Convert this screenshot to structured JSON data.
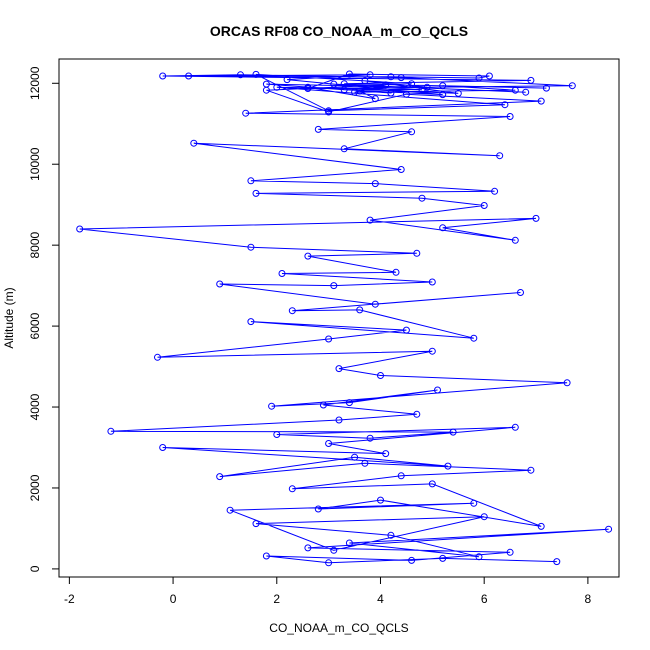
{
  "chart_data": {
    "type": "scatter",
    "title": "ORCAS RF08 CO_NOAA_m_CO_QCLS",
    "xlabel": "CO_NOAA_m_CO_QCLS",
    "ylabel": "Altitude (m)",
    "xlim": [
      -2.2,
      8.6
    ],
    "ylim": [
      -200,
      12600
    ],
    "xticks": [
      -2,
      0,
      2,
      4,
      6,
      8
    ],
    "yticks": [
      0,
      2000,
      4000,
      6000,
      8000,
      10000,
      12000
    ],
    "x": [
      7.4,
      5.2,
      3.0,
      1.8,
      4.6,
      6.5,
      2.6,
      8.4,
      3.4,
      5.9,
      4.2,
      1.6,
      6.0,
      3.1,
      1.1,
      5.8,
      2.8,
      4.0,
      7.1,
      5.0,
      2.3,
      4.4,
      6.9,
      3.7,
      0.9,
      3.5,
      5.3,
      -0.2,
      4.1,
      3.0,
      6.6,
      2.0,
      3.8,
      5.4,
      -1.2,
      3.2,
      4.7,
      2.9,
      5.1,
      3.4,
      1.9,
      7.6,
      4.0,
      3.2,
      5.0,
      -0.3,
      3.0,
      4.5,
      1.5,
      5.8,
      3.6,
      2.3,
      6.7,
      3.9,
      0.9,
      3.1,
      5.0,
      2.1,
      4.3,
      2.6,
      4.7,
      1.5,
      -1.8,
      7.0,
      5.2,
      6.6,
      3.8,
      6.0,
      4.8,
      1.6,
      6.2,
      3.9,
      1.5,
      4.4,
      0.4,
      6.3,
      3.3,
      4.6,
      2.8,
      6.5,
      1.4,
      7.1,
      4.5,
      3.0,
      1.8,
      4.1,
      3.5,
      6.6,
      5.2,
      7.2,
      3.3,
      6.9,
      -0.2,
      1.3,
      4.4,
      7.7,
      2.6,
      3.4,
      6.1,
      5.9,
      4.2,
      0.3,
      3.8,
      2.2,
      5.2,
      3.3,
      1.8,
      4.9,
      3.7,
      5.5,
      2.6,
      3.9,
      3.6,
      4.2,
      4.6,
      1.6,
      3.0,
      6.4,
      2.0,
      4.8,
      3.1,
      6.8
    ],
    "y": [
      180,
      260,
      150,
      320,
      210,
      410,
      520,
      980,
      640,
      300,
      830,
      1120,
      1290,
      460,
      1450,
      1620,
      1480,
      1700,
      1050,
      2100,
      1980,
      2300,
      2440,
      2610,
      2280,
      2760,
      2540,
      3000,
      2850,
      3100,
      3500,
      3320,
      3230,
      3380,
      3400,
      3680,
      3820,
      4050,
      4420,
      4110,
      4020,
      4600,
      4780,
      4950,
      5380,
      5230,
      5680,
      5900,
      6110,
      5700,
      6400,
      6380,
      6830,
      6540,
      7040,
      7000,
      7090,
      7300,
      7330,
      7730,
      7800,
      7950,
      8400,
      8660,
      8430,
      8120,
      8620,
      8980,
      9160,
      9280,
      9330,
      9520,
      9590,
      9870,
      10520,
      10210,
      10380,
      10800,
      10860,
      11180,
      11260,
      11560,
      11730,
      11290,
      11830,
      11960,
      11780,
      11830,
      11940,
      11880,
      11990,
      12070,
      12180,
      12210,
      12140,
      11940,
      11870,
      12230,
      12180,
      12130,
      12160,
      12180,
      12210,
      12090,
      11720,
      11840,
      11980,
      11900,
      12060,
      11750,
      11900,
      11620,
      11810,
      11760,
      11990,
      12220,
      11320,
      11470,
      11900,
      11840,
      11980,
      11780
    ]
  }
}
